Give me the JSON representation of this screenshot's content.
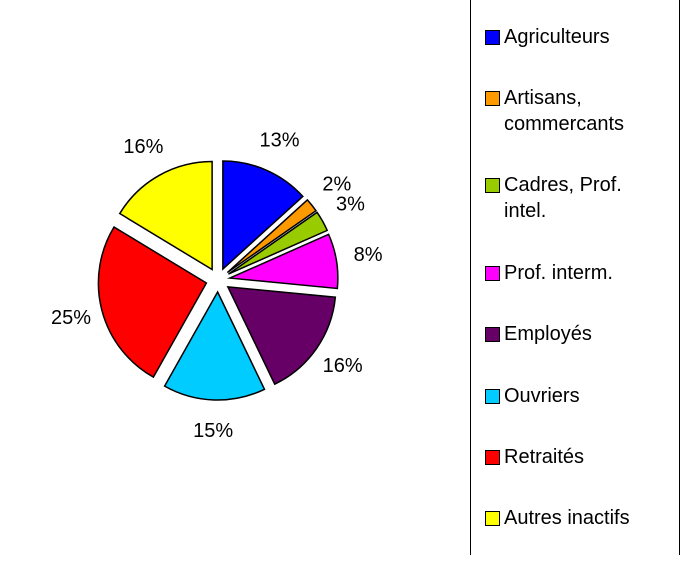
{
  "chart_data": {
    "type": "pie",
    "categories": [
      "Agriculteurs",
      "Artisans, commercants",
      "Cadres, Prof. intel.",
      "Prof. interm.",
      "Employés",
      "Ouvriers",
      "Retraités",
      "Autres inactifs"
    ],
    "values": [
      13,
      2,
      3,
      8,
      16,
      15,
      25,
      16
    ],
    "value_labels": [
      "13%",
      "2%",
      "3%",
      "8%",
      "16%",
      "15%",
      "25%",
      "16%"
    ],
    "colors": [
      "#0000ff",
      "#ff9900",
      "#99cc00",
      "#ff00ff",
      "#660066",
      "#00ccff",
      "#ff0000",
      "#ffff00"
    ],
    "legend": "right"
  }
}
